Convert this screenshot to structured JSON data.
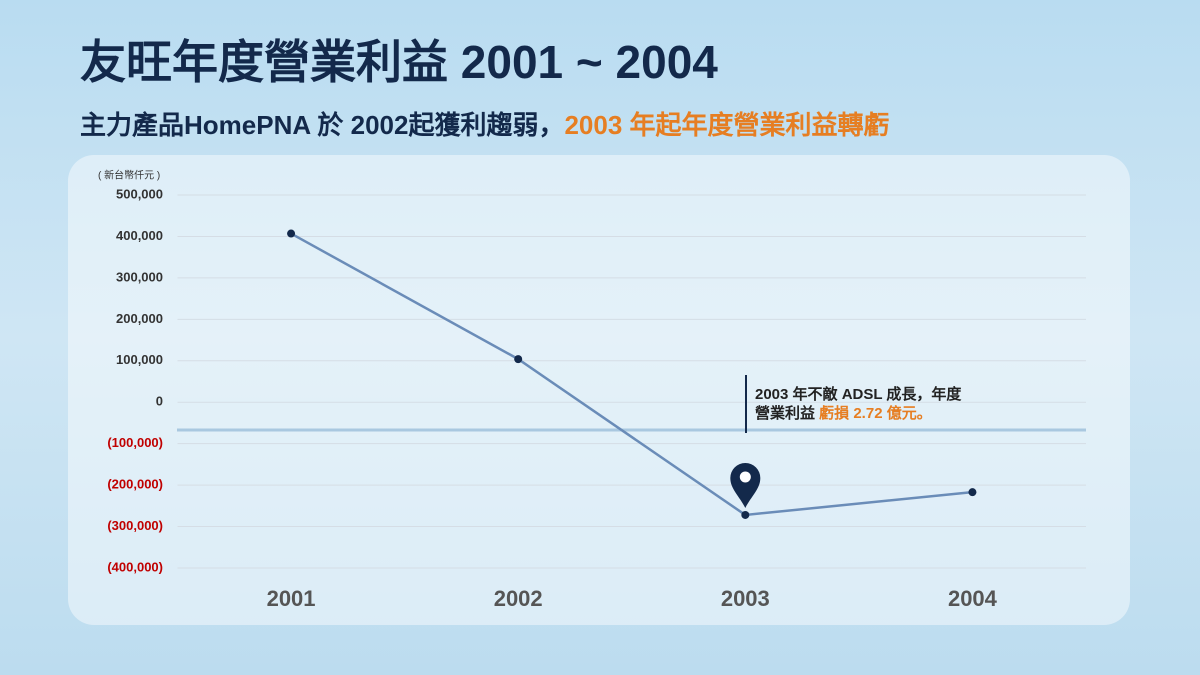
{
  "chart_data": {
    "type": "line",
    "title": "友旺年度營業利益 2001 ~ 2004",
    "subtitle": [
      "主力產品HomePNA 於 2002起獲利趨弱，",
      "2003 年起年度營業利益轉虧"
    ],
    "y_unit": "( 新台幣仟元 )",
    "categories": [
      "2001",
      "2002",
      "2003",
      "2004"
    ],
    "series": [
      {
        "name": "營業利益",
        "color": "#6a8cb8",
        "marker_color": "#13294b",
        "values": [
          407000,
          104000,
          -272000,
          -217000
        ]
      }
    ],
    "ylim": [
      -400000,
      500000
    ],
    "yticks": [
      {
        "value": -400000,
        "label": "(400,000)"
      },
      {
        "value": -300000,
        "label": "(300,000)"
      },
      {
        "value": -200000,
        "label": "(200,000)"
      },
      {
        "value": -100000,
        "label": "(100,000)"
      },
      0,
      {
        "value": 100000,
        "label": "100,000"
      },
      {
        "value": 200000,
        "label": "200,000"
      },
      {
        "value": 300000,
        "label": "300,000"
      },
      {
        "value": 400000,
        "label": "400,000"
      },
      {
        "value": 500000,
        "label": "500,000"
      }
    ],
    "tick_color": "#333333",
    "negative_tick_color": "#c00000",
    "grid": true,
    "annotation": [
      "2003 年不敵 ADSL 成長，年度",
      "營業利益 ",
      "虧損 2.72 億元。"
    ]
  }
}
